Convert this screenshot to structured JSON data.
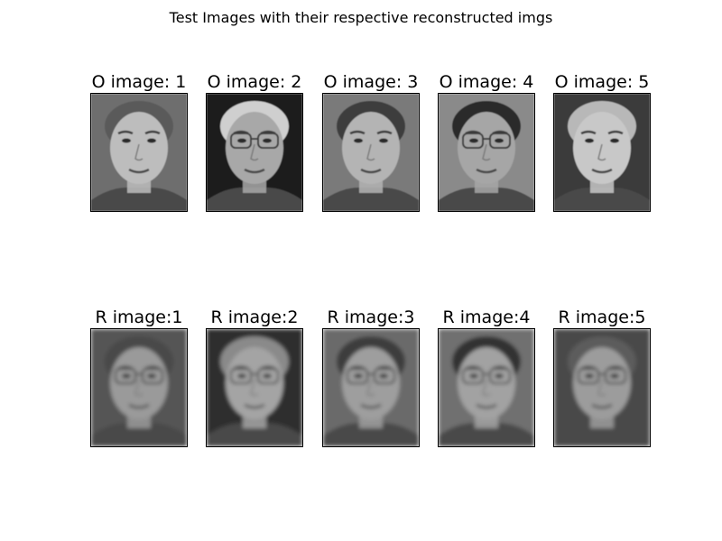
{
  "figure": {
    "title": "Test Images with their respective reconstructed imgs"
  },
  "original_row": [
    {
      "label": "O image: 1",
      "image": "grayscale-face-photo",
      "bg": "#6e6e6e",
      "skin": "#bdbdbd",
      "hair": "#5a5a5a",
      "glasses": false,
      "blur": false
    },
    {
      "label": "O image: 2",
      "image": "grayscale-face-photo",
      "bg": "#1e1e1e",
      "skin": "#a8a8a8",
      "hair": "#cfcfcf",
      "glasses": true,
      "blur": false
    },
    {
      "label": "O image: 3",
      "image": "grayscale-face-photo",
      "bg": "#7a7a7a",
      "skin": "#b4b4b4",
      "hair": "#3c3c3c",
      "glasses": false,
      "blur": false
    },
    {
      "label": "O image: 4",
      "image": "grayscale-face-photo",
      "bg": "#8a8a8a",
      "skin": "#a6a6a6",
      "hair": "#2a2a2a",
      "glasses": true,
      "blur": false
    },
    {
      "label": "O image: 5",
      "image": "grayscale-face-photo",
      "bg": "#3a3a3a",
      "skin": "#c8c8c8",
      "hair": "#b8b8b8",
      "glasses": false,
      "blur": false
    }
  ],
  "reconstructed_row": [
    {
      "label": "R image:1",
      "image": "blurred-reconstructed-face",
      "bg": "#555555",
      "skin": "#9a9a9a",
      "hair": "#4a4a4a",
      "glasses": true,
      "blur": true
    },
    {
      "label": "R image:2",
      "image": "blurred-reconstructed-face",
      "bg": "#2e2e2e",
      "skin": "#a4a4a4",
      "hair": "#8a8a8a",
      "glasses": true,
      "blur": true
    },
    {
      "label": "R image:3",
      "image": "blurred-reconstructed-face",
      "bg": "#6a6a6a",
      "skin": "#9e9e9e",
      "hair": "#3e3e3e",
      "glasses": true,
      "blur": true
    },
    {
      "label": "R image:4",
      "image": "blurred-reconstructed-face",
      "bg": "#707070",
      "skin": "#a2a2a2",
      "hair": "#333333",
      "glasses": true,
      "blur": true
    },
    {
      "label": "R image:5",
      "image": "blurred-reconstructed-face",
      "bg": "#4a4a4a",
      "skin": "#9c9c9c",
      "hair": "#5c5c5c",
      "glasses": true,
      "blur": true
    }
  ]
}
